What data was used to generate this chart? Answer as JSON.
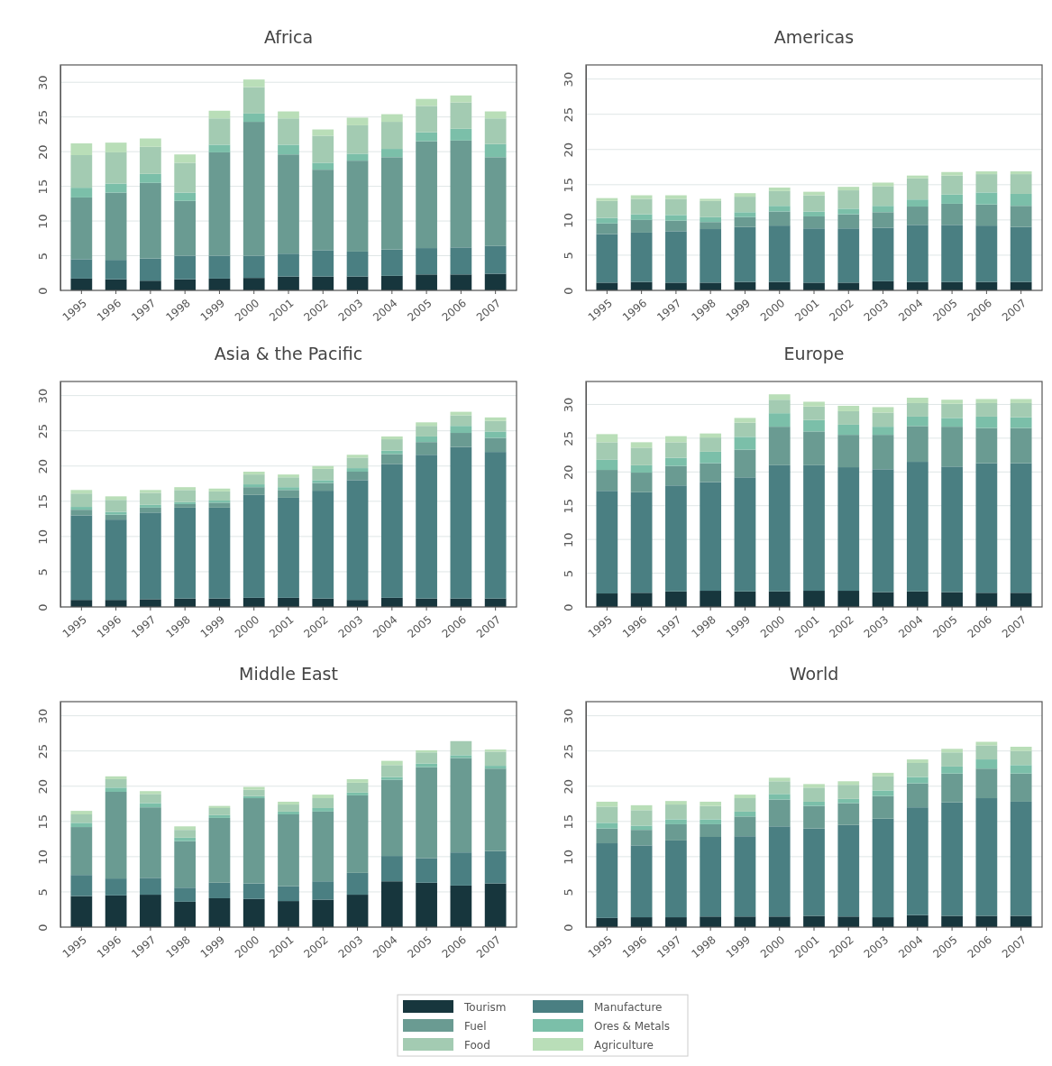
{
  "chart_data": [
    {
      "type": "bar",
      "title": "Africa",
      "stacked": true,
      "categories": [
        "1995",
        "1996",
        "1997",
        "1998",
        "1999",
        "2000",
        "2001",
        "2002",
        "2003",
        "2004",
        "2005",
        "2006",
        "2007"
      ],
      "ylim": [
        0,
        32.5
      ],
      "yticks": [
        0,
        5,
        10,
        15,
        20,
        25,
        30
      ],
      "grid": "y",
      "legend": "bottom",
      "series": [
        {
          "name": "Tourism",
          "color": "#17363d",
          "values": [
            1.7,
            1.6,
            1.4,
            1.6,
            1.7,
            1.8,
            2.0,
            2.0,
            2.0,
            2.1,
            2.3,
            2.3,
            2.4
          ]
        },
        {
          "name": "Manufacture",
          "color": "#4a7f82",
          "values": [
            2.8,
            2.8,
            3.2,
            3.4,
            3.3,
            3.2,
            3.3,
            3.8,
            3.6,
            3.8,
            3.8,
            3.9,
            4.0
          ]
        },
        {
          "name": "Fuel",
          "color": "#6a9b92",
          "values": [
            8.9,
            9.7,
            10.9,
            7.9,
            14.9,
            19.3,
            14.3,
            11.6,
            13.1,
            13.3,
            15.4,
            15.4,
            12.8
          ]
        },
        {
          "name": "Ores & Metals",
          "color": "#7bbfa9",
          "values": [
            1.4,
            1.3,
            1.3,
            1.2,
            1.1,
            1.2,
            1.4,
            1.0,
            1.0,
            1.2,
            1.3,
            1.7,
            1.9
          ]
        },
        {
          "name": "Food",
          "color": "#a3cbb2",
          "values": [
            4.7,
            4.5,
            3.9,
            4.3,
            3.8,
            3.8,
            3.8,
            3.9,
            4.1,
            3.9,
            3.8,
            3.8,
            3.7
          ]
        },
        {
          "name": "Agriculture",
          "color": "#b9deb8",
          "values": [
            1.7,
            1.4,
            1.2,
            1.2,
            1.1,
            1.1,
            1.0,
            0.9,
            1.1,
            1.1,
            1.0,
            1.0,
            1.0
          ]
        }
      ]
    },
    {
      "type": "bar",
      "title": "Americas",
      "stacked": true,
      "categories": [
        "1995",
        "1996",
        "1997",
        "1998",
        "1999",
        "2000",
        "2001",
        "2002",
        "2003",
        "2004",
        "2005",
        "2006",
        "2007"
      ],
      "ylim": [
        0,
        32
      ],
      "yticks": [
        0,
        5,
        10,
        15,
        20,
        25,
        30
      ],
      "grid": "y",
      "series": [
        {
          "color": "#17363d",
          "values": [
            1.1,
            1.2,
            1.1,
            1.1,
            1.2,
            1.2,
            1.1,
            1.1,
            1.3,
            1.2,
            1.2,
            1.2,
            1.2
          ]
        },
        {
          "color": "#4a7f82",
          "values": [
            6.9,
            7.0,
            7.3,
            7.6,
            7.8,
            8.0,
            7.7,
            7.7,
            7.6,
            8.1,
            8.1,
            8.0,
            7.8
          ]
        },
        {
          "color": "#6a9b92",
          "values": [
            1.5,
            1.8,
            1.5,
            1.0,
            1.4,
            2.0,
            1.7,
            2.0,
            2.2,
            2.6,
            3.0,
            3.0,
            3.0
          ]
        },
        {
          "color": "#7bbfa9",
          "values": [
            0.8,
            0.8,
            0.8,
            0.7,
            0.7,
            0.8,
            0.7,
            0.8,
            0.9,
            1.0,
            1.3,
            1.7,
            1.7
          ]
        },
        {
          "color": "#a3cbb2",
          "values": [
            2.4,
            2.2,
            2.3,
            2.3,
            2.2,
            2.1,
            2.3,
            2.6,
            2.8,
            3.0,
            2.7,
            2.6,
            2.8
          ]
        },
        {
          "color": "#b9deb8",
          "values": [
            0.4,
            0.5,
            0.5,
            0.3,
            0.5,
            0.5,
            0.5,
            0.5,
            0.5,
            0.4,
            0.5,
            0.4,
            0.4
          ]
        }
      ]
    },
    {
      "type": "bar",
      "title": "Asia & the Pacific",
      "stacked": true,
      "categories": [
        "1995",
        "1996",
        "1997",
        "1998",
        "1999",
        "2000",
        "2001",
        "2002",
        "2003",
        "2004",
        "2005",
        "2006",
        "2007"
      ],
      "ylim": [
        0,
        32
      ],
      "yticks": [
        0,
        5,
        10,
        15,
        20,
        25,
        30
      ],
      "grid": "y",
      "series": [
        {
          "color": "#17363d",
          "values": [
            1.0,
            1.0,
            1.1,
            1.2,
            1.2,
            1.3,
            1.3,
            1.2,
            1.0,
            1.3,
            1.2,
            1.2,
            1.2
          ]
        },
        {
          "color": "#4a7f82",
          "values": [
            12.0,
            11.4,
            12.3,
            12.9,
            12.9,
            14.6,
            14.2,
            15.3,
            17.0,
            19.0,
            20.4,
            21.5,
            20.8
          ]
        },
        {
          "color": "#6a9b92",
          "values": [
            0.8,
            0.7,
            0.7,
            0.5,
            0.7,
            1.1,
            1.1,
            1.1,
            1.2,
            1.4,
            1.8,
            2.0,
            2.0
          ]
        },
        {
          "color": "#7bbfa9",
          "values": [
            0.4,
            0.4,
            0.4,
            0.3,
            0.3,
            0.4,
            0.4,
            0.4,
            0.5,
            0.5,
            0.8,
            1.0,
            0.9
          ]
        },
        {
          "color": "#a3cbb2",
          "values": [
            1.9,
            1.7,
            1.7,
            1.7,
            1.3,
            1.4,
            1.4,
            1.6,
            1.5,
            1.6,
            1.5,
            1.5,
            1.5
          ]
        },
        {
          "color": "#b9deb8",
          "values": [
            0.5,
            0.5,
            0.4,
            0.4,
            0.4,
            0.4,
            0.4,
            0.4,
            0.4,
            0.4,
            0.5,
            0.5,
            0.5
          ]
        }
      ]
    },
    {
      "type": "bar",
      "title": "Europe",
      "stacked": true,
      "categories": [
        "1995",
        "1996",
        "1997",
        "1998",
        "1999",
        "2000",
        "2001",
        "2002",
        "2003",
        "2004",
        "2005",
        "2006",
        "2007"
      ],
      "ylim": [
        0,
        33.4
      ],
      "yticks": [
        0,
        5,
        10,
        15,
        20,
        25,
        30
      ],
      "grid": "y",
      "series": [
        {
          "color": "#17363d",
          "values": [
            2.0,
            2.1,
            2.3,
            2.4,
            2.3,
            2.3,
            2.4,
            2.4,
            2.2,
            2.3,
            2.2,
            2.1,
            2.1
          ]
        },
        {
          "color": "#4a7f82",
          "values": [
            15.2,
            14.9,
            15.7,
            16.1,
            16.9,
            18.7,
            18.6,
            18.3,
            18.2,
            19.2,
            18.6,
            19.2,
            19.2
          ]
        },
        {
          "color": "#6a9b92",
          "values": [
            3.1,
            2.9,
            2.9,
            2.8,
            4.1,
            5.7,
            5.0,
            4.8,
            5.1,
            5.3,
            5.9,
            5.2,
            5.2
          ]
        },
        {
          "color": "#7bbfa9",
          "values": [
            1.5,
            1.1,
            1.2,
            1.7,
            1.9,
            2.0,
            1.7,
            1.5,
            1.2,
            1.4,
            1.3,
            1.7,
            1.6
          ]
        },
        {
          "color": "#a3cbb2",
          "values": [
            2.6,
            2.6,
            2.3,
            2.1,
            2.1,
            2.0,
            2.0,
            2.0,
            2.1,
            2.0,
            2.1,
            2.0,
            2.1
          ]
        },
        {
          "color": "#b9deb8",
          "values": [
            1.2,
            0.8,
            0.9,
            0.6,
            0.7,
            0.8,
            0.7,
            0.8,
            0.8,
            0.8,
            0.6,
            0.6,
            0.6
          ]
        }
      ]
    },
    {
      "type": "bar",
      "title": "Middle East",
      "stacked": true,
      "categories": [
        "1995",
        "1996",
        "1997",
        "1998",
        "1999",
        "2000",
        "2001",
        "2002",
        "2003",
        "2004",
        "2005",
        "2006",
        "2007"
      ],
      "ylim": [
        0,
        32
      ],
      "yticks": [
        0,
        5,
        10,
        15,
        20,
        25,
        30
      ],
      "grid": "y",
      "series": [
        {
          "color": "#17363d",
          "values": [
            4.4,
            4.5,
            4.6,
            3.6,
            4.1,
            4.0,
            3.7,
            3.9,
            4.6,
            6.5,
            6.3,
            5.9,
            6.2
          ]
        },
        {
          "color": "#4a7f82",
          "values": [
            3.0,
            2.4,
            2.4,
            2.0,
            2.2,
            2.2,
            2.1,
            2.6,
            3.1,
            3.6,
            3.5,
            4.7,
            4.6
          ]
        },
        {
          "color": "#6a9b92",
          "values": [
            6.8,
            12.3,
            10.0,
            6.6,
            9.2,
            12.1,
            10.2,
            9.9,
            11.0,
            10.8,
            12.9,
            13.4,
            11.7
          ]
        },
        {
          "color": "#7bbfa9",
          "values": [
            0.6,
            0.6,
            0.6,
            0.5,
            0.4,
            0.3,
            0.4,
            0.5,
            0.4,
            0.4,
            0.5,
            0.4,
            0.4
          ]
        },
        {
          "color": "#a3cbb2",
          "values": [
            1.2,
            1.2,
            1.3,
            1.1,
            1.0,
            0.9,
            1.0,
            1.4,
            1.4,
            1.7,
            1.6,
            2.0,
            2.0
          ]
        },
        {
          "color": "#b9deb8",
          "values": [
            0.5,
            0.4,
            0.4,
            0.5,
            0.3,
            0.4,
            0.4,
            0.5,
            0.5,
            0.6,
            0.3,
            null,
            0.3
          ]
        }
      ]
    },
    {
      "type": "bar",
      "title": "World",
      "stacked": true,
      "categories": [
        "1995",
        "1996",
        "1997",
        "1998",
        "1999",
        "2000",
        "2001",
        "2002",
        "2003",
        "2004",
        "2005",
        "2006",
        "2007"
      ],
      "ylim": [
        0,
        32
      ],
      "yticks": [
        0,
        5,
        10,
        15,
        20,
        25,
        30
      ],
      "grid": "y",
      "series": [
        {
          "color": "#17363d",
          "values": [
            1.3,
            1.4,
            1.4,
            1.5,
            1.5,
            1.5,
            1.6,
            1.5,
            1.4,
            1.7,
            1.6,
            1.6,
            1.6
          ]
        },
        {
          "color": "#4a7f82",
          "values": [
            10.6,
            10.2,
            10.9,
            11.3,
            11.4,
            12.8,
            12.4,
            13.0,
            14.0,
            15.3,
            16.1,
            16.7,
            16.2
          ]
        },
        {
          "color": "#6a9b92",
          "values": [
            2.1,
            2.2,
            2.3,
            1.8,
            2.8,
            3.8,
            3.2,
            3.1,
            3.2,
            3.4,
            4.1,
            4.2,
            4.0
          ]
        },
        {
          "color": "#7bbfa9",
          "values": [
            0.8,
            0.6,
            0.7,
            0.7,
            0.7,
            0.8,
            0.6,
            0.6,
            0.8,
            0.9,
            1.0,
            1.3,
            1.2
          ]
        },
        {
          "color": "#a3cbb2",
          "values": [
            2.3,
            2.2,
            2.1,
            1.9,
            1.9,
            1.8,
            2.0,
            2.0,
            2.0,
            2.0,
            2.0,
            2.0,
            2.0
          ]
        },
        {
          "color": "#b9deb8",
          "values": [
            0.7,
            0.7,
            0.5,
            0.6,
            0.5,
            0.5,
            0.5,
            0.5,
            0.5,
            0.5,
            0.5,
            0.5,
            0.6
          ]
        }
      ]
    }
  ]
}
